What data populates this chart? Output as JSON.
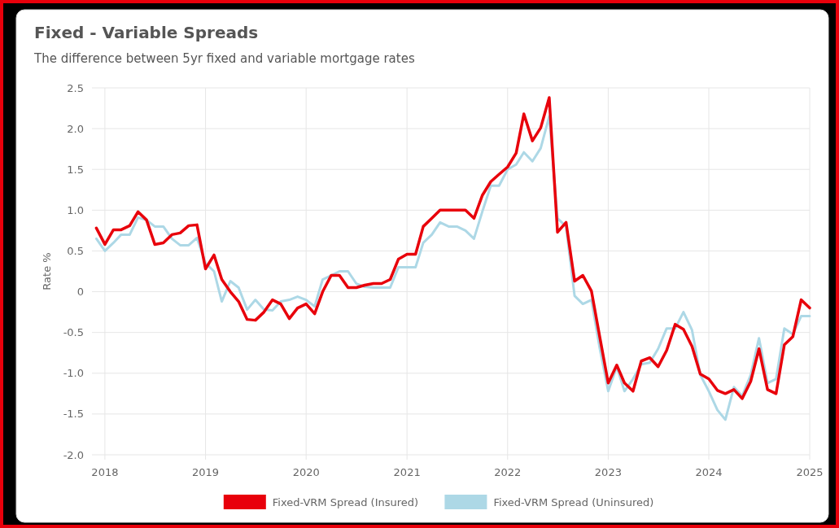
{
  "chart_data": {
    "type": "line",
    "title": "Fixed - Variable Spreads",
    "subtitle": "The difference between 5yr fixed and variable mortgage rates",
    "ylabel": "Rate %",
    "x": [
      "2017-12",
      "2018-01",
      "2018-02",
      "2018-03",
      "2018-04",
      "2018-05",
      "2018-06",
      "2018-07",
      "2018-08",
      "2018-09",
      "2018-10",
      "2018-11",
      "2018-12",
      "2019-01",
      "2019-02",
      "2019-03",
      "2019-04",
      "2019-05",
      "2019-06",
      "2019-07",
      "2019-08",
      "2019-09",
      "2019-10",
      "2019-11",
      "2019-12",
      "2020-01",
      "2020-02",
      "2020-03",
      "2020-04",
      "2020-05",
      "2020-06",
      "2020-07",
      "2020-08",
      "2020-09",
      "2020-10",
      "2020-11",
      "2020-12",
      "2021-01",
      "2021-02",
      "2021-03",
      "2021-04",
      "2021-05",
      "2021-06",
      "2021-07",
      "2021-08",
      "2021-09",
      "2021-10",
      "2021-11",
      "2021-12",
      "2022-01",
      "2022-02",
      "2022-03",
      "2022-04",
      "2022-05",
      "2022-06",
      "2022-07",
      "2022-08",
      "2022-09",
      "2022-10",
      "2022-11",
      "2022-12",
      "2023-01",
      "2023-02",
      "2023-03",
      "2023-04",
      "2023-05",
      "2023-06",
      "2023-07",
      "2023-08",
      "2023-09",
      "2023-10",
      "2023-11",
      "2023-12",
      "2024-01",
      "2024-02",
      "2024-03",
      "2024-04",
      "2024-05",
      "2024-06",
      "2024-07",
      "2024-08",
      "2024-09",
      "2024-10",
      "2024-11",
      "2024-12",
      "2025-01"
    ],
    "series": [
      {
        "name": "Fixed-VRM Spread (Uninsured)",
        "color": "#add8e6",
        "values": [
          0.65,
          0.5,
          0.6,
          0.7,
          0.7,
          0.91,
          0.88,
          0.8,
          0.8,
          0.65,
          0.57,
          0.57,
          0.66,
          0.35,
          0.25,
          -0.12,
          0.13,
          0.05,
          -0.22,
          -0.1,
          -0.22,
          -0.23,
          -0.12,
          -0.1,
          -0.06,
          -0.1,
          -0.18,
          0.15,
          0.2,
          0.25,
          0.25,
          0.1,
          0.06,
          0.05,
          0.05,
          0.05,
          0.3,
          0.3,
          0.3,
          0.6,
          0.7,
          0.85,
          0.8,
          0.8,
          0.75,
          0.65,
          0.98,
          1.3,
          1.3,
          1.5,
          1.56,
          1.71,
          1.6,
          1.76,
          2.15,
          0.9,
          0.8,
          -0.05,
          -0.15,
          -0.1,
          -0.69,
          -1.22,
          -0.92,
          -1.22,
          -1.07,
          -0.89,
          -0.87,
          -0.7,
          -0.45,
          -0.45,
          -0.25,
          -0.47,
          -1.02,
          -1.22,
          -1.45,
          -1.57,
          -1.17,
          -1.28,
          -1.02,
          -0.57,
          -1.12,
          -1.07,
          -0.45,
          -0.52,
          -0.3,
          -0.3
        ]
      },
      {
        "name": "Fixed-VRM Spread (Insured)",
        "color": "#e8000b",
        "values": [
          0.78,
          0.58,
          0.76,
          0.76,
          0.81,
          0.98,
          0.88,
          0.58,
          0.6,
          0.7,
          0.72,
          0.81,
          0.82,
          0.28,
          0.45,
          0.15,
          0.0,
          -0.12,
          -0.34,
          -0.35,
          -0.25,
          -0.1,
          -0.15,
          -0.33,
          -0.2,
          -0.15,
          -0.27,
          0.0,
          0.2,
          0.2,
          0.05,
          0.05,
          0.08,
          0.1,
          0.1,
          0.15,
          0.4,
          0.46,
          0.46,
          0.8,
          0.9,
          1.0,
          1.0,
          1.0,
          1.0,
          0.9,
          1.18,
          1.35,
          1.44,
          1.53,
          1.7,
          2.18,
          1.85,
          2.01,
          2.38,
          0.73,
          0.85,
          0.13,
          0.2,
          0.01,
          -0.55,
          -1.12,
          -0.9,
          -1.12,
          -1.22,
          -0.85,
          -0.81,
          -0.92,
          -0.72,
          -0.4,
          -0.46,
          -0.67,
          -1.01,
          -1.07,
          -1.21,
          -1.25,
          -1.2,
          -1.31,
          -1.1,
          -0.7,
          -1.2,
          -1.25,
          -0.65,
          -0.55,
          -0.1,
          -0.2
        ]
      }
    ],
    "xlim": [
      "2017-11-15",
      "2025-01-01"
    ],
    "xticks": [
      {
        "value": "2018-01-01",
        "label": "2018"
      },
      {
        "value": "2019-01-01",
        "label": "2019"
      },
      {
        "value": "2020-01-01",
        "label": "2020"
      },
      {
        "value": "2021-01-01",
        "label": "2021"
      },
      {
        "value": "2022-01-01",
        "label": "2022"
      },
      {
        "value": "2023-01-01",
        "label": "2023"
      },
      {
        "value": "2024-01-01",
        "label": "2024"
      },
      {
        "value": "2025-01-01",
        "label": "2025"
      }
    ],
    "ylim": [
      -2.0,
      2.5
    ],
    "yticks": [
      {
        "value": -2.0,
        "label": "-2.0"
      },
      {
        "value": -1.5,
        "label": "-1.5"
      },
      {
        "value": -1.0,
        "label": "-1.0"
      },
      {
        "value": -0.5,
        "label": "-0.5"
      },
      0,
      {
        "value": 0.5,
        "label": "0.5"
      },
      {
        "value": 1.0,
        "label": "1.0"
      },
      {
        "value": 1.5,
        "label": "1.5"
      },
      {
        "value": 2.0,
        "label": "2.0"
      },
      {
        "value": 2.5,
        "label": "2.5"
      }
    ],
    "grid": true,
    "legend": "bottom",
    "line_style": "solid"
  }
}
